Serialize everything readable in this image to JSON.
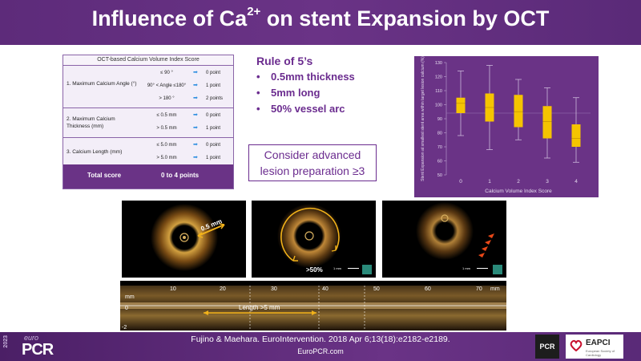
{
  "header": {
    "title_pre": "Influence of Ca",
    "title_sup": "2+",
    "title_post": " on stent Expansion by OCT"
  },
  "score_table": {
    "heading": "OCT-based Calcium Volume Index Score",
    "rows": [
      {
        "label": "1. Maximum Calcium Angle (°)",
        "lines": [
          {
            "cond": "≤ 90 °",
            "points": "0  point"
          },
          {
            "cond": "90° < Angle ≤180°",
            "points": "1  point"
          },
          {
            "cond": "> 180 °",
            "points": "2  points"
          }
        ]
      },
      {
        "label": "2. Maximum Calcium Thickness (mm)",
        "lines": [
          {
            "cond": "≤ 0.5 mm",
            "points": "0  point"
          },
          {
            "cond": "> 0.5 mm",
            "points": "1  point"
          }
        ]
      },
      {
        "label": "3. Calcium Length (mm)",
        "lines": [
          {
            "cond": "≤ 5.0 mm",
            "points": "0  point"
          },
          {
            "cond": "> 5.0 mm",
            "points": "1  point"
          }
        ]
      }
    ],
    "total_label": "Total score",
    "total_value": "0 to 4 points"
  },
  "rule": {
    "title": "Rule of 5’s",
    "bullet": "•",
    "items": [
      "0.5mm thickness",
      "5mm long",
      "50% vessel arc"
    ]
  },
  "advanced": {
    "line1": "Consider advanced",
    "line2": "lesion preparation ≥3"
  },
  "chart_data": {
    "type": "box",
    "xlabel": "Calcium Volume Index Score",
    "ylabel": "Stent Expansion at smallest stent area within target lesion calcium (%)",
    "categories": [
      "0",
      "1",
      "2",
      "3",
      "4"
    ],
    "ylim": [
      50,
      130
    ],
    "yticks": [
      50,
      60,
      70,
      80,
      90,
      100,
      110,
      120,
      130
    ],
    "reference_line": 94,
    "boxes": [
      {
        "category": "0",
        "min": 78,
        "q1": 94,
        "median": 101,
        "q3": 105,
        "max": 124
      },
      {
        "category": "1",
        "min": 68,
        "q1": 88,
        "median": 98,
        "q3": 108,
        "max": 128
      },
      {
        "category": "2",
        "min": 75,
        "q1": 84,
        "median": 95,
        "q3": 107,
        "max": 118
      },
      {
        "category": "3",
        "min": 62,
        "q1": 76,
        "median": 88,
        "q3": 99,
        "max": 112
      },
      {
        "category": "4",
        "min": 59,
        "q1": 70,
        "median": 76,
        "q3": 86,
        "max": 105
      }
    ],
    "box_color": "#f5c400",
    "grid": false
  },
  "oct": {
    "img1_label": "0.5 mm",
    "img2_label": ">50%",
    "scale_label": "1 mm"
  },
  "longitudinal": {
    "unit": "mm",
    "ticks": [
      "10",
      "20",
      "30",
      "40",
      "50",
      "60",
      "70"
    ],
    "tick_unit": "mm",
    "left_zero": "0",
    "left_neg": "-2",
    "length_label": "Length >5 mm"
  },
  "footer": {
    "citation": "Fujino & Maehara. EuroIntervention. 2018 Apr 6;13(18):e2182-e2189.",
    "url": "EuroPCR.com",
    "logo_year": "2023",
    "logo_euro": "euro",
    "logo_pcr": "PCR",
    "badge_pcr": "PCR",
    "badge_eapci": "EAPCI",
    "badge_eapci_sub": "European Society of Cardiology"
  },
  "colors": {
    "brand_purple": "#6a3386",
    "accent_blue": "#2f8fe0",
    "box_yellow": "#f5c400"
  }
}
